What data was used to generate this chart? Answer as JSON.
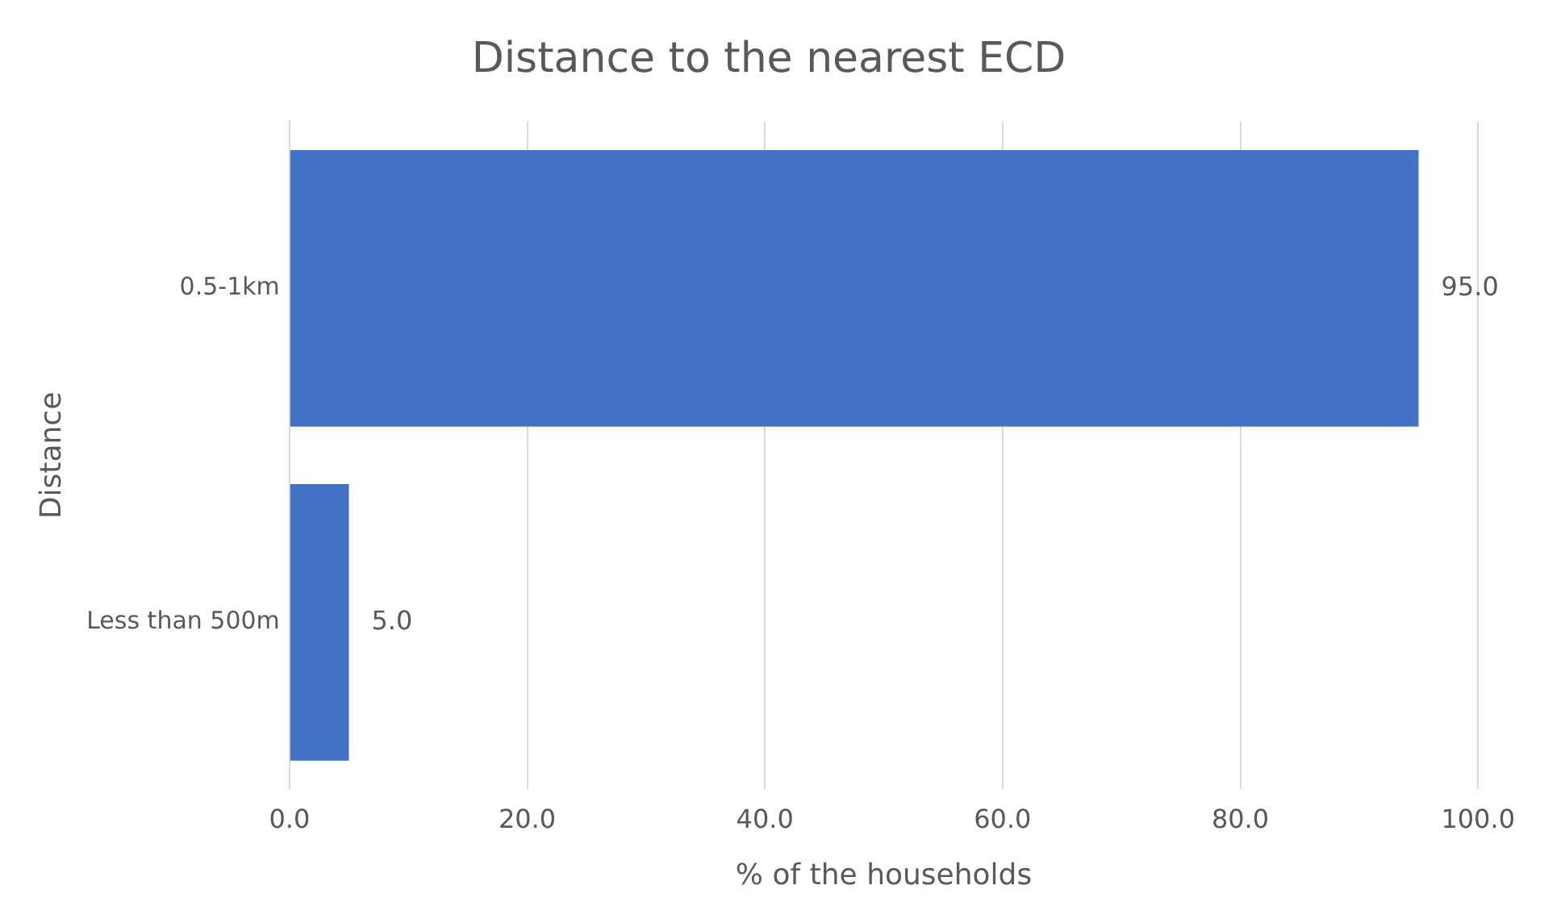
{
  "chart_data": {
    "type": "bar",
    "orientation": "horizontal",
    "title": "Distance to the nearest ECD",
    "xlabel": "% of the households",
    "ylabel": "Distance",
    "categories": [
      "0.5-1km",
      "Less than 500m"
    ],
    "values": [
      95.0,
      5.0
    ],
    "value_labels": [
      "95.0",
      "5.0"
    ],
    "color": "#4472c4",
    "xlim": [
      0,
      100
    ],
    "xticks": [
      {
        "value": 0,
        "label": "0.0"
      },
      {
        "value": 20,
        "label": "20.0"
      },
      {
        "value": 40,
        "label": "40.0"
      },
      {
        "value": 60,
        "label": "60.0"
      },
      {
        "value": 80,
        "label": "80.0"
      },
      {
        "value": 100,
        "label": "100.0"
      }
    ],
    "grid": "x",
    "legend": false
  }
}
